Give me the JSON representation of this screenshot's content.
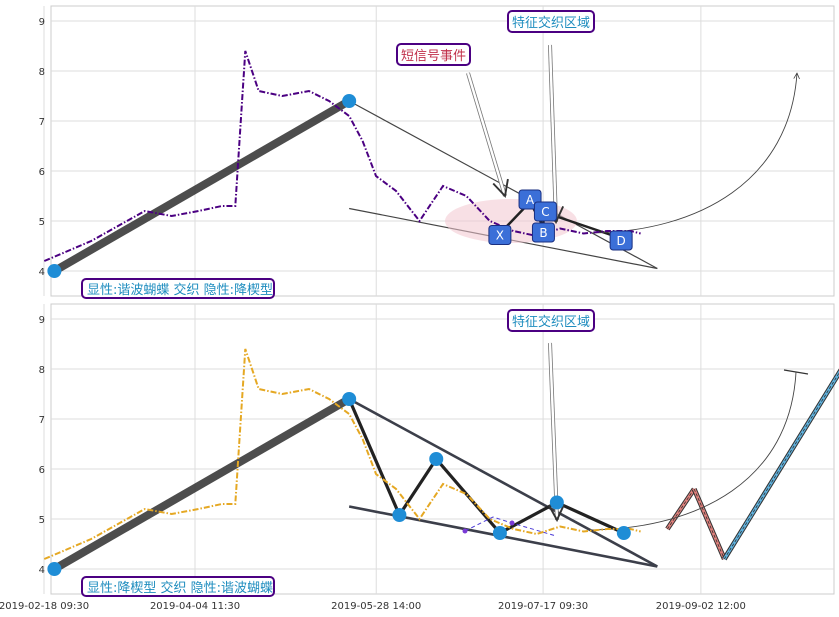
{
  "chart_data": [
    {
      "type": "line",
      "panel": "top",
      "title": "",
      "xlabel": "",
      "ylabel": "",
      "ylim": [
        3.5,
        9.3
      ],
      "yticks": [
        4,
        5,
        6,
        7,
        8,
        9
      ],
      "grid": true,
      "series": [
        {
          "color": "#4b0082",
          "style": "dash-dot",
          "x": [
            "2019-02-18",
            "2019-02-25",
            "2019-03-04",
            "2019-03-12",
            "2019-03-20",
            "2019-03-28",
            "2019-04-05",
            "2019-04-12",
            "2019-04-16",
            "2019-04-19",
            "2019-04-23",
            "2019-04-30",
            "2019-05-08",
            "2019-05-14",
            "2019-05-20",
            "2019-05-24",
            "2019-05-28",
            "2019-06-03",
            "2019-06-10",
            "2019-06-17",
            "2019-06-24",
            "2019-07-01",
            "2019-07-08",
            "2019-07-15",
            "2019-07-22",
            "2019-07-29",
            "2019-08-05",
            "2019-08-12",
            "2019-08-15"
          ],
          "values": [
            4.2,
            4.4,
            4.6,
            4.9,
            5.2,
            5.1,
            5.2,
            5.3,
            5.3,
            8.4,
            7.6,
            7.5,
            7.6,
            7.4,
            7.1,
            6.6,
            5.9,
            5.6,
            5.0,
            5.7,
            5.5,
            5.0,
            4.8,
            4.7,
            4.85,
            4.75,
            4.8,
            4.8,
            4.75
          ]
        }
      ],
      "pattern_points": [
        {
          "label": "",
          "x": "2019-02-21",
          "y": 4.0
        },
        {
          "label": "",
          "x": "2019-05-20",
          "y": 7.4
        },
        {
          "label": "X",
          "x": "2019-07-04",
          "y": 4.75
        },
        {
          "label": "A",
          "x": "2019-07-13",
          "y": 5.38
        },
        {
          "label": "B",
          "x": "2019-07-17",
          "y": 4.88
        },
        {
          "label": "C",
          "x": "2019-07-17",
          "y": 5.18
        },
        {
          "label": "D",
          "x": "2019-08-08",
          "y": 4.68
        }
      ],
      "trend_lines": [
        {
          "from": [
            "2019-05-20",
            7.4
          ],
          "to": [
            "2019-08-20",
            4.05
          ]
        },
        {
          "from": [
            "2019-05-20",
            5.25
          ],
          "to": [
            "2019-08-20",
            4.05
          ]
        }
      ],
      "annotations": {
        "bottom_left": "显性:谐波蝴蝶 交织 隐性:降楔型",
        "signal": "短信号事件",
        "zone": "特征交织区域"
      }
    },
    {
      "type": "line",
      "panel": "bottom",
      "title": "",
      "xlabel": "",
      "ylabel": "",
      "ylim": [
        3.5,
        9.3
      ],
      "yticks": [
        4,
        5,
        6,
        7,
        8,
        9
      ],
      "xticks": [
        "2019-02-18 09:30",
        "2019-04-04 11:30",
        "2019-05-28 14:00",
        "2019-07-17 09:30",
        "2019-09-02 12:00"
      ],
      "grid": true,
      "series": [
        {
          "color": "#e5a823",
          "style": "dash-dot",
          "x": [
            "2019-02-18",
            "2019-02-25",
            "2019-03-04",
            "2019-03-12",
            "2019-03-20",
            "2019-03-28",
            "2019-04-05",
            "2019-04-12",
            "2019-04-16",
            "2019-04-19",
            "2019-04-23",
            "2019-04-30",
            "2019-05-08",
            "2019-05-14",
            "2019-05-20",
            "2019-05-24",
            "2019-05-28",
            "2019-06-03",
            "2019-06-10",
            "2019-06-17",
            "2019-06-24",
            "2019-07-01",
            "2019-07-08",
            "2019-07-15",
            "2019-07-22",
            "2019-07-29",
            "2019-08-05",
            "2019-08-12",
            "2019-08-15"
          ],
          "values": [
            4.2,
            4.4,
            4.6,
            4.9,
            5.2,
            5.1,
            5.2,
            5.3,
            5.3,
            8.4,
            7.6,
            7.5,
            7.6,
            7.4,
            7.1,
            6.6,
            5.9,
            5.6,
            5.0,
            5.7,
            5.5,
            5.0,
            4.8,
            4.7,
            4.85,
            4.75,
            4.8,
            4.8,
            4.75
          ]
        }
      ],
      "pattern_points": [
        {
          "label": "",
          "x": "2019-02-21",
          "y": 4.0
        },
        {
          "label": "",
          "x": "2019-05-20",
          "y": 7.4
        },
        {
          "label": "",
          "x": "2019-06-04",
          "y": 5.08
        },
        {
          "label": "",
          "x": "2019-06-15",
          "y": 6.2
        },
        {
          "label": "",
          "x": "2019-07-04",
          "y": 4.72
        },
        {
          "label": "",
          "x": "2019-07-21",
          "y": 5.33
        },
        {
          "label": "",
          "x": "2019-08-10",
          "y": 4.72
        }
      ],
      "projection": [
        {
          "x": "2019-08-23",
          "y": 4.8
        },
        {
          "x": "2019-08-31",
          "y": 5.6
        },
        {
          "x": "2019-09-09",
          "y": 4.2
        },
        {
          "x": "2019-10-14",
          "y": 8.0
        }
      ],
      "annotations": {
        "bottom_left": "显性:降楔型 交织 隐性:谐波蝴蝶",
        "zone": "特征交织区域"
      }
    }
  ]
}
